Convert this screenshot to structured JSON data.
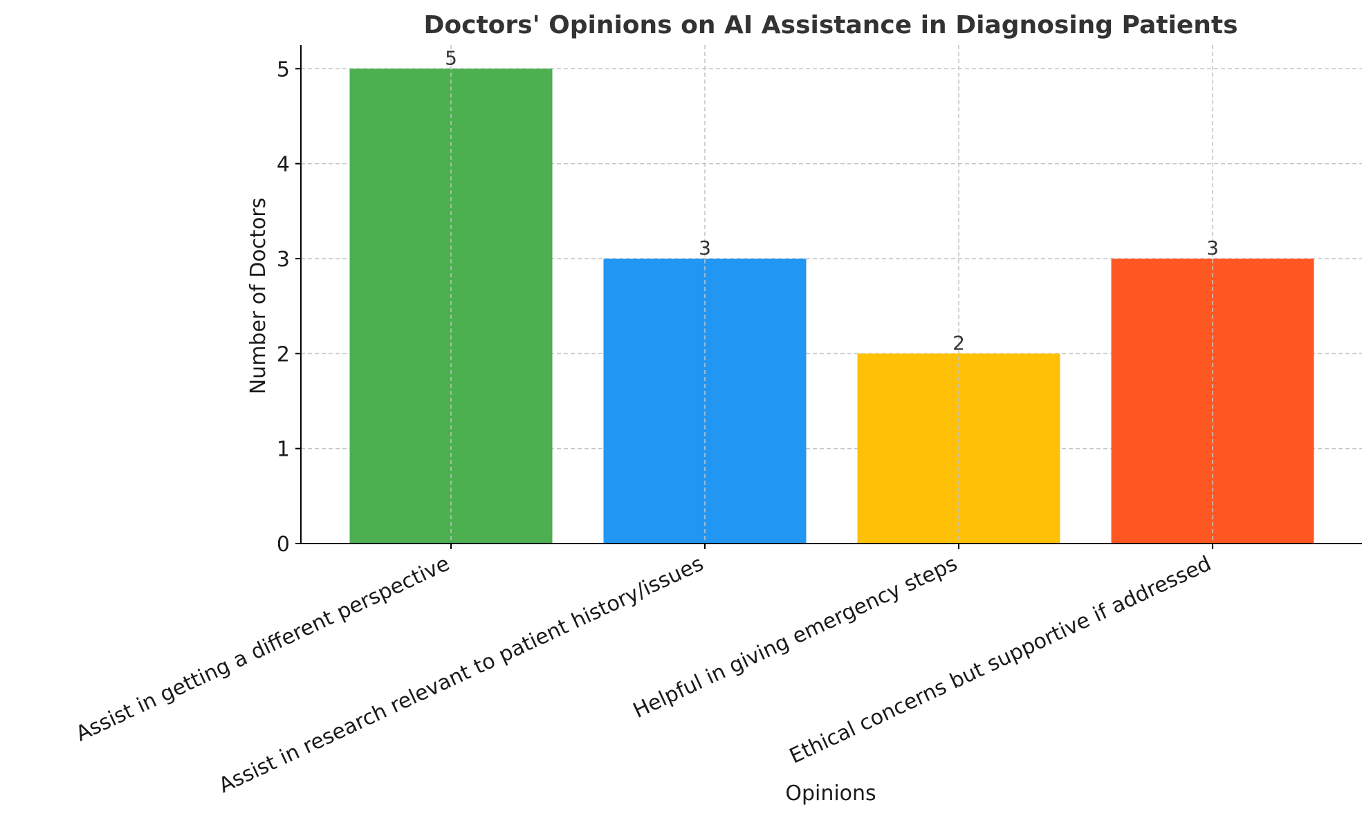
{
  "chart_data": {
    "type": "bar",
    "title": "Doctors' Opinions on AI Assistance in Diagnosing Patients",
    "xlabel": "Opinions",
    "ylabel": "Number of Doctors",
    "categories": [
      "Assist in getting a different perspective",
      "Assist in research relevant to patient history/issues",
      "Helpful in giving emergency steps",
      "Ethical concerns but supportive if addressed"
    ],
    "values": [
      5,
      3,
      2,
      3
    ],
    "data_labels": [
      "5",
      "3",
      "2",
      "3"
    ],
    "colors": [
      "#4caf50",
      "#2196f3",
      "#ffc107",
      "#ff5722"
    ],
    "ylim": [
      0,
      5.25
    ],
    "yticks": [
      0,
      1,
      2,
      3,
      4,
      5
    ],
    "ytick_labels": [
      "0",
      "1",
      "2",
      "3",
      "4",
      "5"
    ],
    "grid": true,
    "x_tick_label_rotation": "diagonal"
  }
}
